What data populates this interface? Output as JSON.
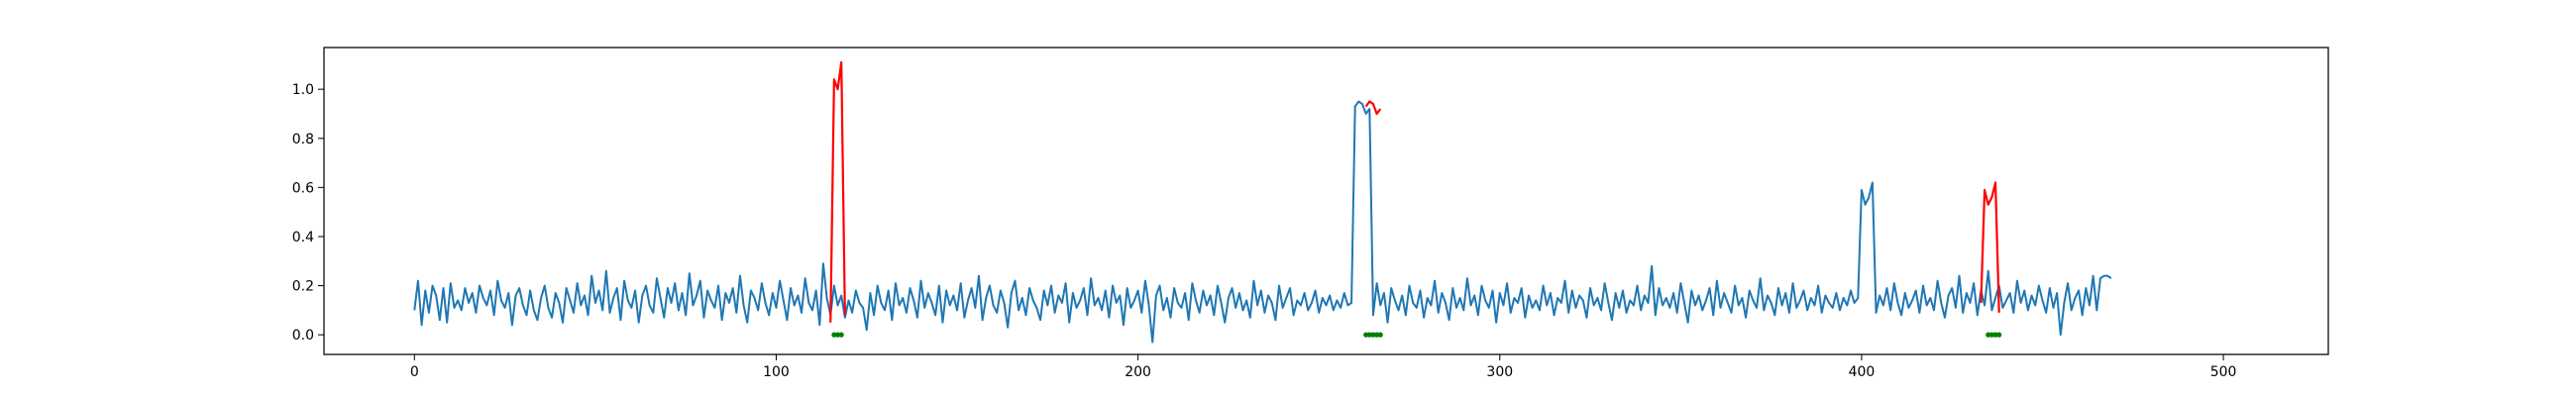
{
  "chart_data": {
    "type": "line",
    "title": "",
    "xlabel": "",
    "ylabel": "",
    "xlim": [
      -25,
      529
    ],
    "ylim": [
      -0.08,
      1.17
    ],
    "x_ticks": [
      0,
      100,
      200,
      300,
      400,
      500
    ],
    "y_ticks": [
      0.0,
      0.2,
      0.4,
      0.6,
      0.8,
      1.0
    ],
    "x_tick_labels": [
      "0",
      "100",
      "200",
      "300",
      "400",
      "500"
    ],
    "y_tick_labels": [
      "0.0",
      "0.2",
      "0.4",
      "0.6",
      "0.8",
      "1.0"
    ],
    "grid": false,
    "legend": "none",
    "colors": {
      "signal": "#1f77b4",
      "anomaly": "#ff0000",
      "marker": "#008000"
    },
    "series": [
      {
        "role": "signal",
        "x_start": 0,
        "values": [
          0.1,
          0.22,
          0.04,
          0.18,
          0.09,
          0.2,
          0.16,
          0.06,
          0.19,
          0.05,
          0.21,
          0.11,
          0.14,
          0.1,
          0.19,
          0.13,
          0.17,
          0.09,
          0.2,
          0.15,
          0.12,
          0.18,
          0.08,
          0.22,
          0.14,
          0.11,
          0.17,
          0.04,
          0.16,
          0.19,
          0.12,
          0.08,
          0.18,
          0.1,
          0.06,
          0.15,
          0.2,
          0.11,
          0.07,
          0.17,
          0.13,
          0.05,
          0.19,
          0.14,
          0.09,
          0.21,
          0.12,
          0.16,
          0.08,
          0.24,
          0.13,
          0.18,
          0.1,
          0.26,
          0.09,
          0.15,
          0.19,
          0.06,
          0.22,
          0.14,
          0.11,
          0.18,
          0.05,
          0.16,
          0.2,
          0.12,
          0.09,
          0.23,
          0.15,
          0.07,
          0.19,
          0.13,
          0.21,
          0.1,
          0.17,
          0.08,
          0.25,
          0.12,
          0.16,
          0.22,
          0.07,
          0.18,
          0.14,
          0.11,
          0.2,
          0.06,
          0.17,
          0.13,
          0.19,
          0.09,
          0.24,
          0.12,
          0.05,
          0.18,
          0.15,
          0.1,
          0.21,
          0.13,
          0.08,
          0.17,
          0.11,
          0.22,
          0.14,
          0.06,
          0.19,
          0.12,
          0.16,
          0.09,
          0.23,
          0.13,
          0.1,
          0.18,
          0.04,
          0.29,
          0.15,
          0.08,
          0.2,
          0.12,
          0.16,
          0.07,
          0.14,
          0.09,
          0.18,
          0.13,
          0.11,
          0.02,
          0.17,
          0.08,
          0.2,
          0.13,
          0.1,
          0.18,
          0.06,
          0.21,
          0.12,
          0.15,
          0.09,
          0.19,
          0.14,
          0.07,
          0.22,
          0.11,
          0.17,
          0.13,
          0.08,
          0.2,
          0.05,
          0.18,
          0.12,
          0.16,
          0.1,
          0.21,
          0.07,
          0.14,
          0.19,
          0.11,
          0.24,
          0.06,
          0.15,
          0.2,
          0.12,
          0.09,
          0.18,
          0.13,
          0.03,
          0.17,
          0.22,
          0.1,
          0.15,
          0.08,
          0.19,
          0.14,
          0.11,
          0.06,
          0.18,
          0.12,
          0.2,
          0.09,
          0.16,
          0.13,
          0.21,
          0.05,
          0.17,
          0.11,
          0.14,
          0.19,
          0.08,
          0.23,
          0.12,
          0.15,
          0.1,
          0.18,
          0.07,
          0.2,
          0.13,
          0.16,
          0.04,
          0.19,
          0.11,
          0.14,
          0.18,
          0.09,
          0.22,
          0.12,
          -0.03,
          0.16,
          0.2,
          0.1,
          0.15,
          0.07,
          0.19,
          0.13,
          0.11,
          0.17,
          0.06,
          0.21,
          0.14,
          0.09,
          0.18,
          0.12,
          0.16,
          0.08,
          0.2,
          0.13,
          0.05,
          0.15,
          0.19,
          0.11,
          0.17,
          0.1,
          0.14,
          0.07,
          0.22,
          0.12,
          0.18,
          0.09,
          0.16,
          0.13,
          0.06,
          0.2,
          0.11,
          0.15,
          0.19,
          0.08,
          0.14,
          0.12,
          0.17,
          0.1,
          0.13,
          0.18,
          0.09,
          0.15,
          0.12,
          0.16,
          0.1,
          0.14,
          0.11,
          0.17,
          0.12,
          0.13,
          0.93,
          0.95,
          0.94,
          0.9,
          0.92,
          0.08,
          0.21,
          0.12,
          0.17,
          0.05,
          0.19,
          0.14,
          0.1,
          0.16,
          0.08,
          0.2,
          0.13,
          0.11,
          0.18,
          0.07,
          0.15,
          0.12,
          0.22,
          0.09,
          0.17,
          0.13,
          0.06,
          0.19,
          0.11,
          0.15,
          0.1,
          0.23,
          0.12,
          0.16,
          0.08,
          0.2,
          0.14,
          0.11,
          0.18,
          0.05,
          0.17,
          0.12,
          0.21,
          0.09,
          0.15,
          0.13,
          0.19,
          0.07,
          0.16,
          0.11,
          0.14,
          0.1,
          0.2,
          0.12,
          0.17,
          0.08,
          0.15,
          0.13,
          0.22,
          0.09,
          0.18,
          0.11,
          0.16,
          0.14,
          0.07,
          0.19,
          0.12,
          0.15,
          0.1,
          0.21,
          0.13,
          0.06,
          0.17,
          0.11,
          0.18,
          0.09,
          0.14,
          0.12,
          0.2,
          0.1,
          0.16,
          0.13,
          0.28,
          0.08,
          0.19,
          0.12,
          0.15,
          0.11,
          0.17,
          0.09,
          0.21,
          0.13,
          0.05,
          0.18,
          0.12,
          0.16,
          0.1,
          0.14,
          0.19,
          0.08,
          0.22,
          0.11,
          0.17,
          0.13,
          0.09,
          0.2,
          0.12,
          0.15,
          0.07,
          0.18,
          0.14,
          0.11,
          0.23,
          0.1,
          0.16,
          0.13,
          0.08,
          0.19,
          0.12,
          0.17,
          0.09,
          0.21,
          0.11,
          0.14,
          0.18,
          0.1,
          0.15,
          0.12,
          0.2,
          0.09,
          0.16,
          0.13,
          0.11,
          0.17,
          0.1,
          0.15,
          0.12,
          0.18,
          0.13,
          0.15,
          0.59,
          0.53,
          0.56,
          0.62,
          0.09,
          0.16,
          0.12,
          0.19,
          0.1,
          0.21,
          0.13,
          0.08,
          0.17,
          0.11,
          0.14,
          0.18,
          0.09,
          0.2,
          0.12,
          0.15,
          0.1,
          0.22,
          0.13,
          0.07,
          0.16,
          0.19,
          0.11,
          0.24,
          0.09,
          0.17,
          0.13,
          0.21,
          0.08,
          0.18,
          0.12,
          0.26,
          0.1,
          0.15,
          0.2,
          0.11,
          0.14,
          0.17,
          0.09,
          0.22,
          0.13,
          0.18,
          0.1,
          0.16,
          0.12,
          0.2,
          0.14,
          0.09,
          0.19,
          0.11,
          0.17,
          0.0,
          0.13,
          0.21,
          0.1,
          0.15,
          0.18,
          0.08,
          0.19,
          0.12,
          0.24,
          0.1,
          0.23,
          0.24,
          0.24,
          0.23
        ]
      }
    ],
    "anomaly_segments": [
      {
        "x": [
          115,
          116,
          117,
          118,
          119
        ],
        "y": [
          0.05,
          1.04,
          1.0,
          1.11,
          0.08
        ]
      },
      {
        "x": [
          263,
          264,
          265,
          266,
          267
        ],
        "y": [
          0.93,
          0.95,
          0.94,
          0.9,
          0.92
        ]
      },
      {
        "x": [
          433,
          434,
          435,
          436,
          437,
          438
        ],
        "y": [
          0.13,
          0.59,
          0.53,
          0.56,
          0.62,
          0.09
        ]
      }
    ],
    "marker_ranges": [
      {
        "x": [
          116,
          117,
          118
        ],
        "y": 0.0
      },
      {
        "x": [
          263,
          264,
          265,
          266,
          267
        ],
        "y": 0.0
      },
      {
        "x": [
          435,
          436,
          437,
          438
        ],
        "y": 0.0
      }
    ]
  }
}
